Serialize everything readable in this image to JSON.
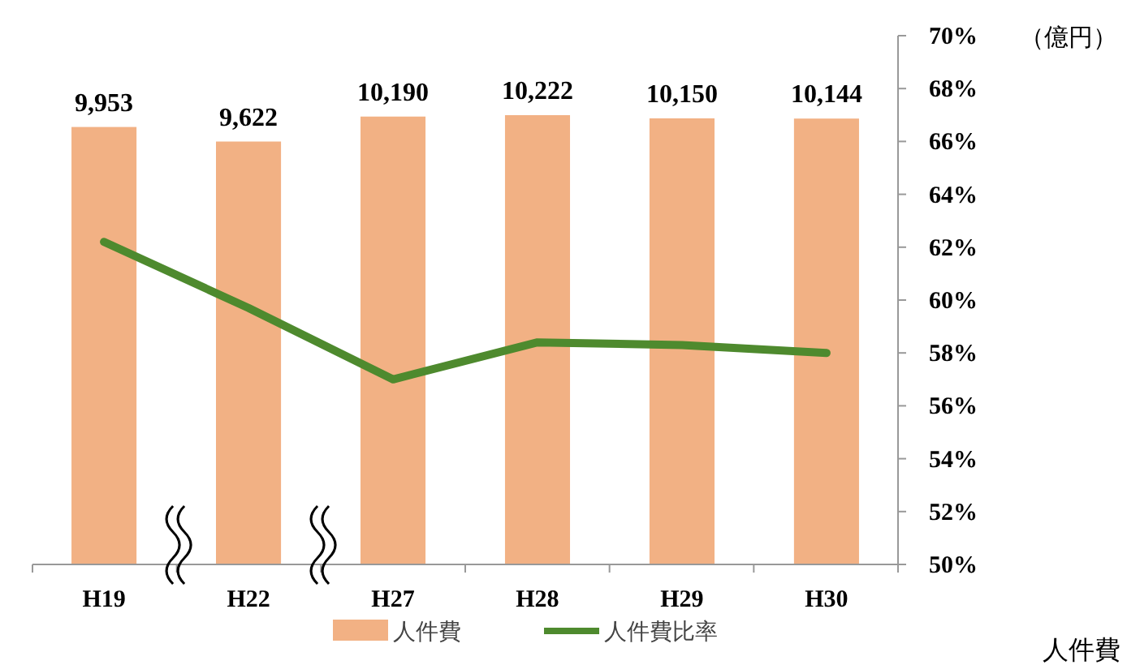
{
  "chart_data": {
    "type": "bar",
    "categories": [
      "H19",
      "H22",
      "H27",
      "H28",
      "H29",
      "H30"
    ],
    "series": [
      {
        "name": "人件費",
        "color": "#f2b184",
        "values": [
          9953,
          9622,
          10190,
          10222,
          10150,
          10144
        ],
        "value_labels": [
          "9,953",
          "9,622",
          "10,190",
          "10,222",
          "10,150",
          "10,144"
        ]
      },
      {
        "name": "人件費比率",
        "type": "line",
        "axis": "y2",
        "color": "#4e8a2e",
        "values": [
          62.2,
          59.7,
          57.0,
          58.4,
          58.3,
          58.0
        ]
      }
    ],
    "ylabel": "（億円）",
    "y2lim": [
      50,
      70
    ],
    "y2ticks": [
      {
        "value": 50,
        "label": "50%"
      },
      {
        "value": 52,
        "label": "52%"
      },
      {
        "value": 54,
        "label": "54%"
      },
      {
        "value": 56,
        "label": "56%"
      },
      {
        "value": 58,
        "label": "58%"
      },
      {
        "value": 60,
        "label": "60%"
      },
      {
        "value": 62,
        "label": "62%"
      },
      {
        "value": 64,
        "label": "64%"
      },
      {
        "value": 66,
        "label": "66%"
      },
      {
        "value": 68,
        "label": "68%"
      },
      {
        "value": 70,
        "label": "70%"
      }
    ],
    "legend": "bottom",
    "annotations": [
      "人件費"
    ]
  }
}
